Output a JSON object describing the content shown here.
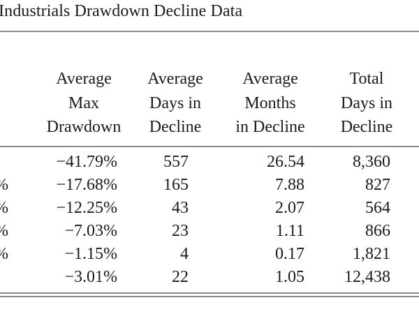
{
  "title": "Industrials Drawdown Decline Data",
  "columns": [
    {
      "lines": [
        "Average",
        "Max",
        "Drawdown"
      ]
    },
    {
      "lines": [
        "Average",
        "Days in",
        "Decline"
      ]
    },
    {
      "lines": [
        "Average",
        "Months",
        "in Decline"
      ]
    },
    {
      "lines": [
        "Total",
        "Days in",
        "Decline"
      ]
    }
  ],
  "rows": [
    {
      "label": "",
      "max_drawdown": "−41.79%",
      "days": "557",
      "months": "26.54",
      "total_days": "8,360"
    },
    {
      "label": "%",
      "max_drawdown": "−17.68%",
      "days": "165",
      "months": "7.88",
      "total_days": "827"
    },
    {
      "label": "%",
      "max_drawdown": "−12.25%",
      "days": "43",
      "months": "2.07",
      "total_days": "564"
    },
    {
      "label": "%",
      "max_drawdown": "−7.03%",
      "days": "23",
      "months": "1.11",
      "total_days": "866"
    },
    {
      "label": "%",
      "max_drawdown": "−1.15%",
      "days": "4",
      "months": "0.17",
      "total_days": "1,821"
    },
    {
      "label": "",
      "max_drawdown": "−3.01%",
      "days": "22",
      "months": "1.05",
      "total_days": "12,438"
    }
  ]
}
